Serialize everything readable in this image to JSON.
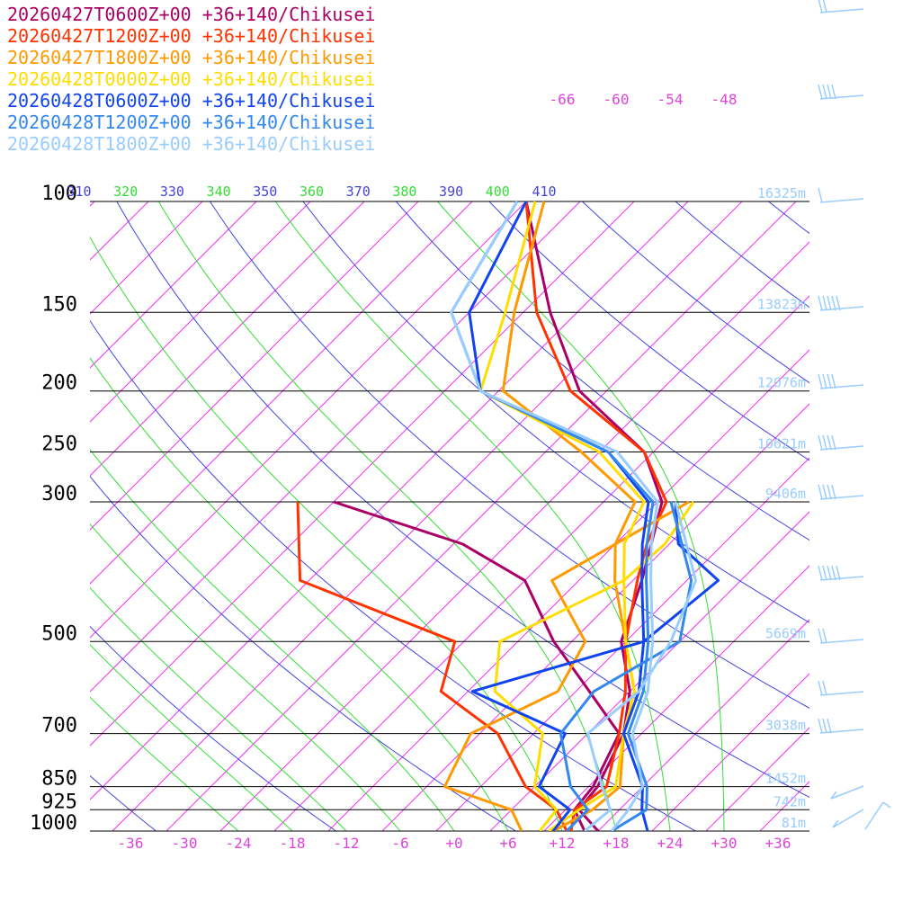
{
  "chart_data": {
    "type": "line",
    "title": "",
    "diagram": "skew-T log-p",
    "pressure_levels": [
      100,
      150,
      200,
      250,
      300,
      500,
      700,
      850,
      925,
      1000
    ],
    "temperature_ticks": [
      "-36",
      "-30",
      "-24",
      "-18",
      "-12",
      "-6",
      "+0",
      "+6",
      "+12",
      "+18",
      "+24",
      "+30",
      "+36"
    ],
    "isotherm_top_labels": [
      "-66",
      "-60",
      "-54",
      "-48"
    ],
    "theta_e_labels": [
      "310",
      "320",
      "330",
      "340",
      "350",
      "360",
      "370",
      "380",
      "390",
      "400",
      "410"
    ],
    "height_labels": [
      {
        "p": 100,
        "label": "16325m"
      },
      {
        "p": 150,
        "label": "13823m"
      },
      {
        "p": 200,
        "label": "12076m"
      },
      {
        "p": 250,
        "label": "10621m"
      },
      {
        "p": 300,
        "label": "9406m"
      },
      {
        "p": 500,
        "label": "5669m"
      },
      {
        "p": 700,
        "label": "3038m"
      },
      {
        "p": 850,
        "label": "1452m"
      },
      {
        "p": 925,
        "label": "742m"
      },
      {
        "p": 1000,
        "label": "81m"
      }
    ],
    "xlim": [
      -40,
      40
    ],
    "ylim": [
      1000,
      100
    ],
    "series": [
      {
        "name": "20260427T0600Z+00 +36+140/Chikusei",
        "color": "#aa0066",
        "temperature": [
          [
            1000,
            16
          ],
          [
            925,
            11.5
          ],
          [
            850,
            11
          ],
          [
            700,
            8
          ],
          [
            600,
            4
          ],
          [
            500,
            -2.5
          ],
          [
            400,
            -7
          ],
          [
            350,
            -10
          ],
          [
            300,
            -13.5
          ],
          [
            250,
            -21
          ],
          [
            200,
            -35
          ],
          [
            150,
            -47
          ],
          [
            100,
            -62
          ]
        ],
        "dewpoint": [
          [
            1000,
            14.5
          ],
          [
            925,
            11
          ],
          [
            850,
            10.5
          ],
          [
            700,
            7.5
          ],
          [
            600,
            -0.5
          ],
          [
            500,
            -10
          ],
          [
            400,
            -20
          ],
          [
            350,
            -31
          ],
          [
            300,
            -50
          ]
        ]
      },
      {
        "name": "20260427T1200Z+00 +36+140/Chikusei",
        "color": "#ff3300",
        "temperature": [
          [
            1000,
            13
          ],
          [
            925,
            11
          ],
          [
            850,
            12
          ],
          [
            700,
            7.5
          ],
          [
            600,
            3.5
          ],
          [
            500,
            -2
          ],
          [
            400,
            -7.5
          ],
          [
            350,
            -10.5
          ],
          [
            300,
            -13
          ],
          [
            250,
            -21
          ],
          [
            200,
            -36
          ],
          [
            150,
            -48.5
          ],
          [
            100,
            -62
          ]
        ],
        "dewpoint": [
          [
            1000,
            12.5
          ],
          [
            925,
            9
          ],
          [
            850,
            3
          ],
          [
            700,
            -6
          ],
          [
            600,
            -17
          ],
          [
            500,
            -21
          ],
          [
            400,
            -45
          ],
          [
            300,
            -54
          ]
        ]
      },
      {
        "name": "20260427T1800Z+00 +36+140/Chikusei",
        "color": "#ff9900",
        "temperature": [
          [
            1000,
            11
          ],
          [
            925,
            13
          ],
          [
            850,
            13.5
          ],
          [
            700,
            8
          ],
          [
            600,
            4.5
          ],
          [
            500,
            -2
          ],
          [
            400,
            -10
          ],
          [
            350,
            -14
          ],
          [
            300,
            -16.5
          ],
          [
            250,
            -28
          ],
          [
            200,
            -43.5
          ],
          [
            150,
            -51
          ],
          [
            100,
            -60
          ]
        ],
        "dewpoint": [
          [
            1000,
            7.5
          ],
          [
            925,
            4
          ],
          [
            850,
            -6
          ],
          [
            700,
            -9
          ],
          [
            600,
            -4
          ],
          [
            500,
            -6.5
          ],
          [
            400,
            -17
          ],
          [
            300,
            -10.5
          ]
        ]
      },
      {
        "name": "20260428T0000Z+00 +36+140/Chikusei",
        "color": "#ffdd00",
        "temperature": [
          [
            1000,
            10.5
          ],
          [
            925,
            11.5
          ],
          [
            850,
            13
          ],
          [
            700,
            8
          ],
          [
            600,
            4.5
          ],
          [
            500,
            -2
          ],
          [
            400,
            -9
          ],
          [
            350,
            -13
          ],
          [
            300,
            -15.5
          ],
          [
            250,
            -26
          ],
          [
            200,
            -46
          ],
          [
            150,
            -52
          ],
          [
            100,
            -61
          ]
        ],
        "dewpoint": [
          [
            1000,
            9.5
          ],
          [
            925,
            9
          ],
          [
            850,
            4
          ],
          [
            700,
            -1
          ],
          [
            600,
            -11
          ],
          [
            500,
            -16
          ],
          [
            400,
            -9
          ],
          [
            350,
            -8.5
          ],
          [
            300,
            -10
          ]
        ]
      },
      {
        "name": "20260428T0600Z+00 +36+140/Chikusei",
        "color": "#1144ee",
        "temperature": [
          [
            1000,
            21.5
          ],
          [
            925,
            18.5
          ],
          [
            850,
            16
          ],
          [
            700,
            8
          ],
          [
            600,
            5
          ],
          [
            500,
            0
          ],
          [
            400,
            -7
          ],
          [
            350,
            -11
          ],
          [
            300,
            -15
          ],
          [
            250,
            -25
          ],
          [
            200,
            -46
          ],
          [
            150,
            -56
          ],
          [
            100,
            -62
          ]
        ],
        "dewpoint": [
          [
            1000,
            11
          ],
          [
            925,
            10.5
          ],
          [
            850,
            4.5
          ],
          [
            700,
            1.5
          ],
          [
            600,
            -13.5
          ],
          [
            500,
            0
          ],
          [
            400,
            1.5
          ],
          [
            350,
            -7
          ],
          [
            300,
            -12
          ]
        ]
      },
      {
        "name": "20260428T1200Z+00 +36+140/Chikusei",
        "color": "#3388ee",
        "temperature": [
          [
            1000,
            17.5
          ],
          [
            925,
            19
          ],
          [
            850,
            16.5
          ],
          [
            700,
            8.5
          ],
          [
            600,
            5.5
          ],
          [
            500,
            0.5
          ],
          [
            400,
            -6.5
          ],
          [
            350,
            -10.5
          ],
          [
            300,
            -14.5
          ],
          [
            250,
            -25
          ],
          [
            200,
            -46
          ],
          [
            150,
            -58
          ],
          [
            100,
            -63
          ]
        ],
        "dewpoint": [
          [
            1000,
            12.5
          ],
          [
            925,
            12.5
          ],
          [
            850,
            8
          ],
          [
            700,
            1
          ],
          [
            600,
            0
          ],
          [
            500,
            4
          ],
          [
            400,
            -1.5
          ],
          [
            300,
            -12.5
          ]
        ]
      },
      {
        "name": "20260428T1800Z+00 +36+140/Chikusei",
        "color": "#99ccff",
        "temperature": [
          [
            1000,
            17.5
          ],
          [
            925,
            17
          ],
          [
            850,
            16
          ],
          [
            700,
            9
          ],
          [
            600,
            6
          ],
          [
            500,
            1
          ],
          [
            400,
            -6
          ],
          [
            350,
            -10
          ],
          [
            300,
            -14
          ],
          [
            250,
            -24
          ],
          [
            200,
            -46
          ],
          [
            150,
            -58
          ],
          [
            100,
            -63
          ]
        ],
        "dewpoint": [
          [
            1000,
            14.5
          ],
          [
            925,
            15
          ],
          [
            850,
            11.5
          ],
          [
            700,
            4
          ],
          [
            600,
            5
          ],
          [
            500,
            3
          ],
          [
            400,
            -1
          ],
          [
            300,
            -12
          ]
        ]
      }
    ],
    "wind_barb_color": "#99ccff",
    "colors": {
      "isobar": "#000000",
      "isotherm": "#ee33ee",
      "dry_adiabat": "#4444dd",
      "moist_adiabat": "#33dd33",
      "axis_label": "#dd44dd",
      "pressure_label": "#000000",
      "height_label": "#99ccff"
    }
  }
}
